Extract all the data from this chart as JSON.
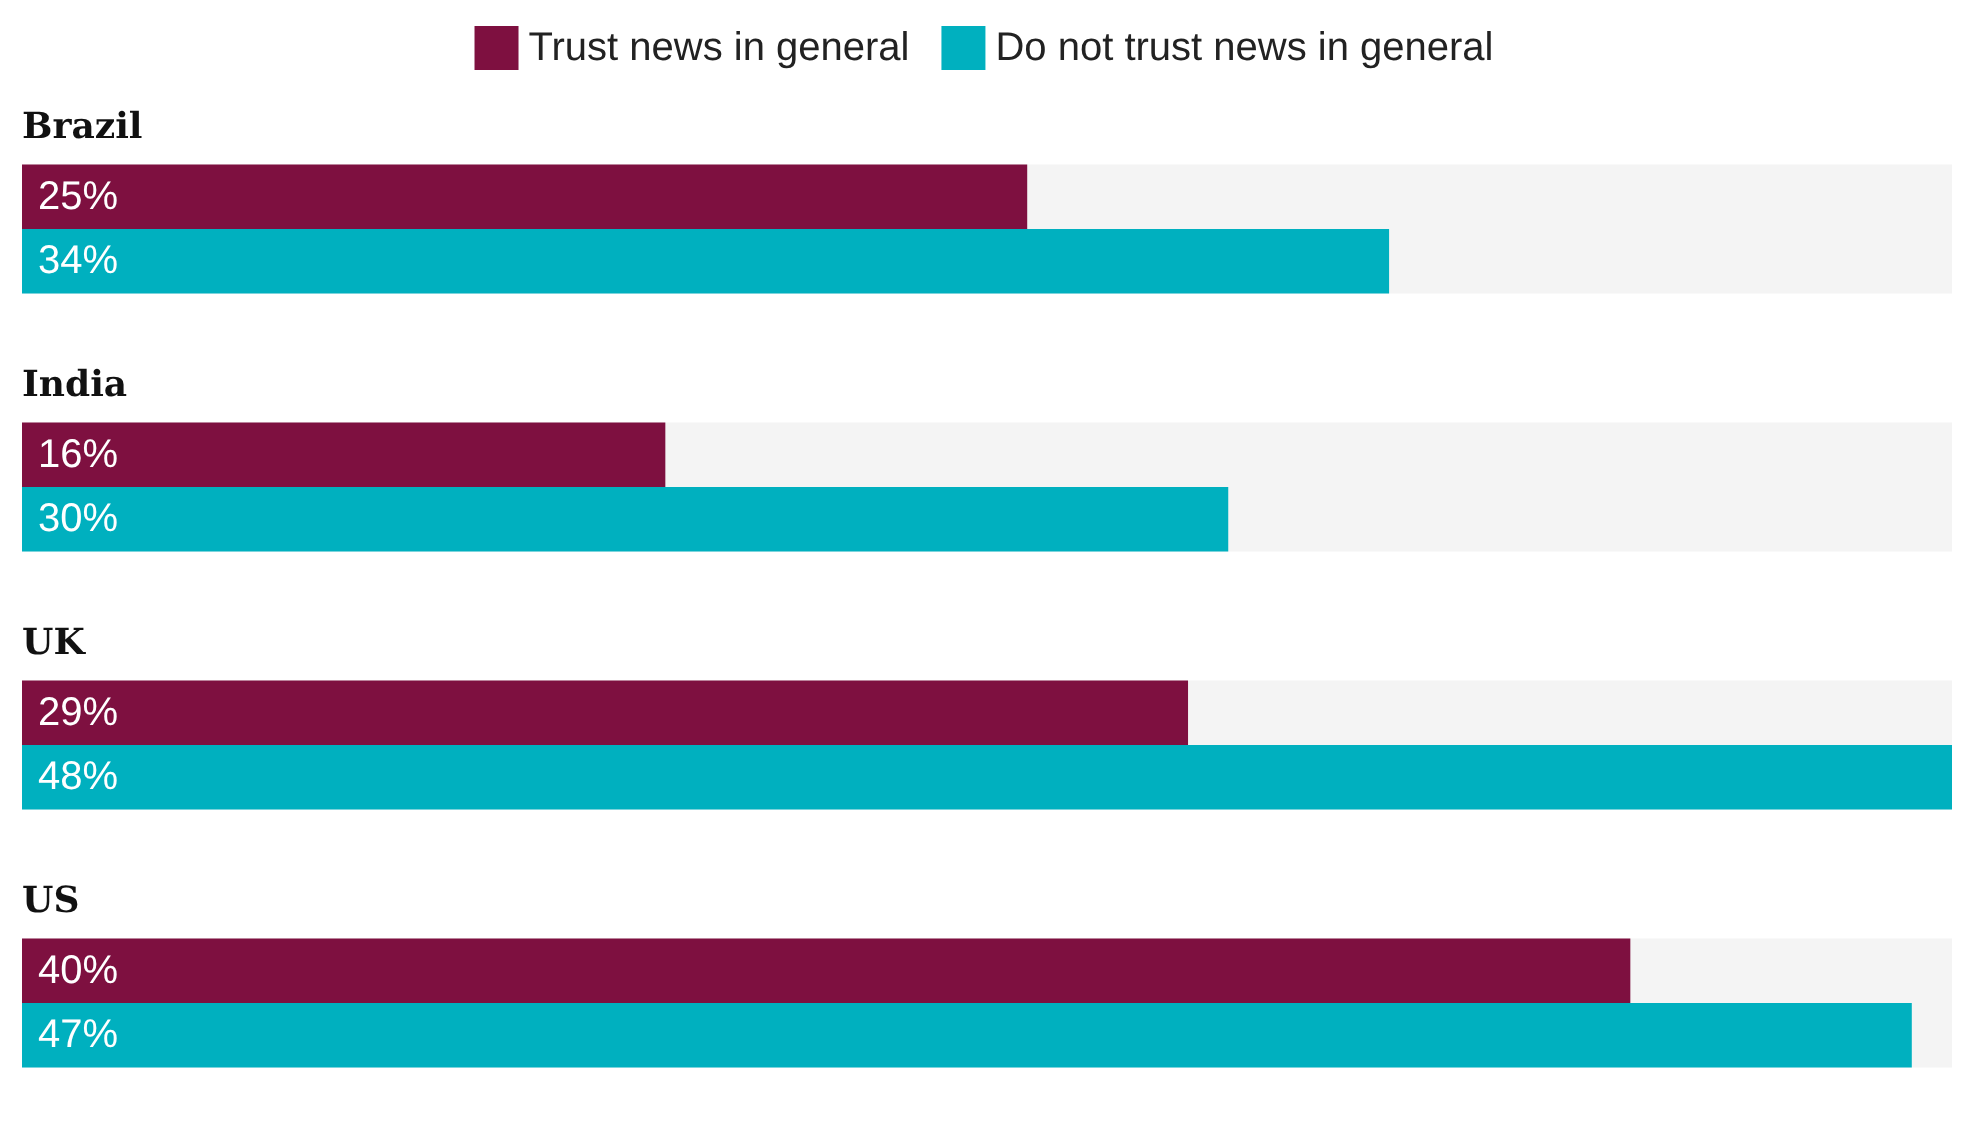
{
  "chart_data": {
    "type": "bar",
    "orientation": "horizontal",
    "categories": [
      "Brazil",
      "India",
      "UK",
      "US"
    ],
    "xlim": [
      0,
      48
    ],
    "legend": "top",
    "series": [
      {
        "name": "Trust news in general",
        "color": "#7e1040",
        "values": [
          25,
          16,
          29,
          40
        ],
        "value_labels": [
          "25%",
          "16%",
          "29%",
          "40%"
        ]
      },
      {
        "name": "Do not trust news in general",
        "color": "#00b0bf",
        "values": [
          34,
          30,
          48,
          47
        ],
        "value_labels": [
          "34%",
          "30%",
          "48%",
          "47%"
        ]
      }
    ]
  }
}
